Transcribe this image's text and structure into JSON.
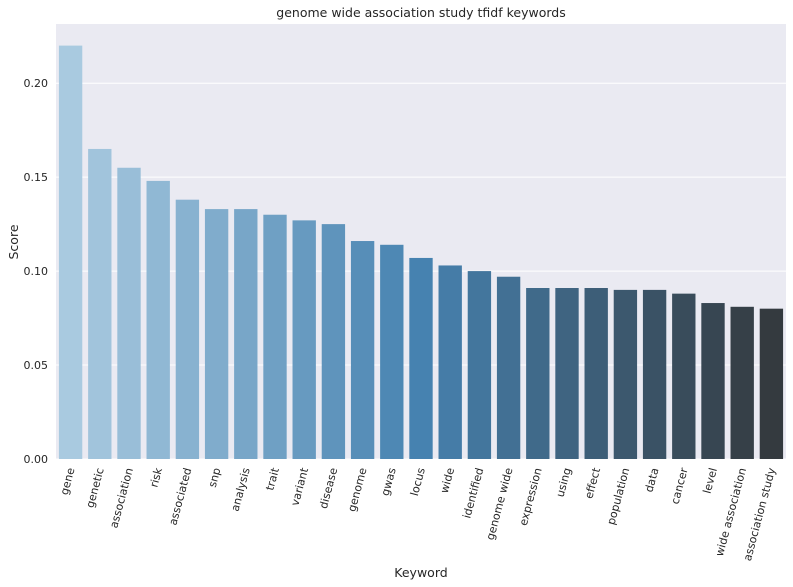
{
  "chart_data": {
    "type": "bar",
    "title": "genome wide association study tfidf keywords",
    "xlabel": "Keyword",
    "ylabel": "Score",
    "categories": [
      "gene",
      "genetic",
      "association",
      "risk",
      "associated",
      "snp",
      "analysis",
      "trait",
      "variant",
      "disease",
      "genome",
      "gwas",
      "locus",
      "wide",
      "identified",
      "genome wide",
      "expression",
      "using",
      "effect",
      "population",
      "data",
      "cancer",
      "level",
      "wide association",
      "association study"
    ],
    "values": [
      0.22,
      0.165,
      0.155,
      0.148,
      0.138,
      0.133,
      0.133,
      0.13,
      0.127,
      0.125,
      0.116,
      0.114,
      0.107,
      0.103,
      0.1,
      0.097,
      0.091,
      0.091,
      0.091,
      0.09,
      0.09,
      0.088,
      0.083,
      0.081,
      0.08
    ],
    "yticks": [
      "0.00",
      "0.05",
      "0.10",
      "0.15",
      "0.20"
    ],
    "ylim": [
      0,
      0.2315
    ],
    "grid": true,
    "background": "#eaeaf2",
    "palette_start": "#a9cae0",
    "palette_mid": "#4682b0",
    "palette_end": "#343a3f"
  }
}
